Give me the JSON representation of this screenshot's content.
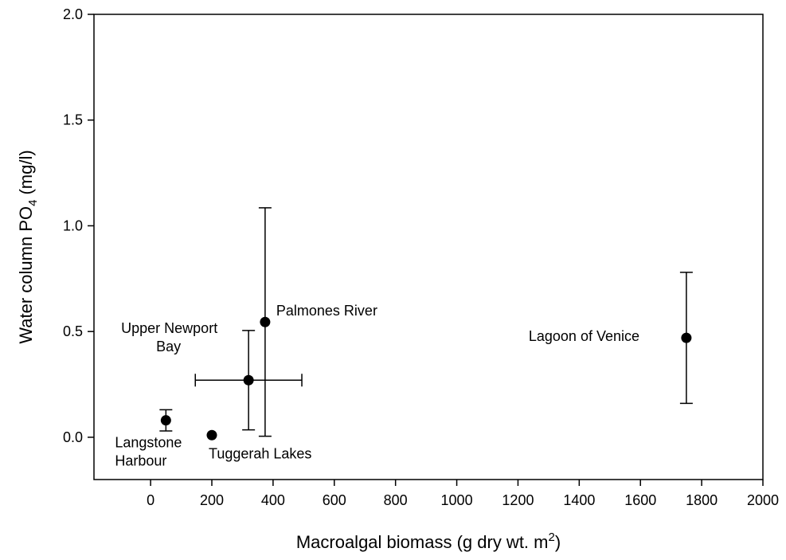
{
  "chart_data": {
    "type": "scatter",
    "xlabel": {
      "text": "Macroalgal biomass (g dry wt. m",
      "sup": "2",
      "after": ")"
    },
    "ylabel": {
      "text": "Water column PO",
      "sub": "4",
      "after": "(mg/l)"
    },
    "x": [
      50,
      200,
      320,
      374,
      1750
    ],
    "y": [
      0.08,
      0.01,
      0.27,
      0.545,
      0.47
    ],
    "xerr": [
      null,
      null,
      174,
      null,
      null
    ],
    "yerr": [
      0.05,
      null,
      0.235,
      0.54,
      0.31
    ],
    "labels": [
      [
        "Langstone",
        "Harbour"
      ],
      [
        "Tuggerah Lakes"
      ],
      [
        "Upper Newport",
        "Bay"
      ],
      [
        "Palmones River"
      ],
      [
        "Lagoon of Venice"
      ]
    ],
    "color": "#000000",
    "xlim": [
      -185,
      2000
    ],
    "ylim": [
      -0.2,
      2.0
    ],
    "xticks": [
      0,
      200,
      400,
      600,
      800,
      1000,
      1200,
      1400,
      1600,
      1800,
      2000
    ],
    "yticks": [
      {
        "value": 0,
        "label": "0.0"
      },
      0.5,
      {
        "value": 1,
        "label": "1.0"
      },
      1.5,
      {
        "value": 2,
        "label": "2.0"
      }
    ]
  }
}
